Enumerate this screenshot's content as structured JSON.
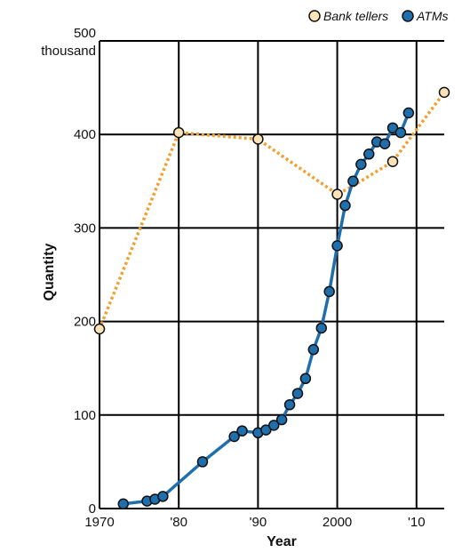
{
  "chart_data": {
    "type": "line",
    "xlabel": "Year",
    "ylabel": "Quantity",
    "xlim": [
      1970,
      2013.5
    ],
    "ylim": [
      0,
      500
    ],
    "x_ticks": [
      {
        "value": 1970,
        "label": "1970"
      },
      {
        "value": 1980,
        "label": "'80"
      },
      {
        "value": 1990,
        "label": "'90"
      },
      {
        "value": 2000,
        "label": "2000"
      },
      {
        "value": 2010,
        "label": "'10"
      }
    ],
    "y_ticks": [
      {
        "value": 0,
        "label": "0"
      },
      {
        "value": 100,
        "label": "100"
      },
      {
        "value": 200,
        "label": "200"
      },
      {
        "value": 300,
        "label": "300"
      },
      {
        "value": 400,
        "label": "400"
      },
      {
        "value": 500,
        "label": "500"
      }
    ],
    "y_top_unit": "thousand",
    "grid": true,
    "legend_position": "top-right",
    "series": [
      {
        "name": "Bank tellers",
        "style": "dotted",
        "line_color": "#f0a030",
        "marker_fill": "#fde4b8",
        "points": [
          {
            "x": 1970,
            "y": 192
          },
          {
            "x": 1980,
            "y": 402
          },
          {
            "x": 1990,
            "y": 395
          },
          {
            "x": 2000,
            "y": 336
          },
          {
            "x": 2002,
            "y": 345
          },
          {
            "x": 2007,
            "y": 371
          },
          {
            "x": 2013.5,
            "y": 445
          }
        ],
        "markers_at": [
          1970,
          1980,
          1990,
          2000,
          2007,
          2013.5
        ]
      },
      {
        "name": "ATMs",
        "style": "solid",
        "line_color": "#1f6fad",
        "marker_fill": "#1f6fad",
        "points": [
          {
            "x": 1973,
            "y": 5
          },
          {
            "x": 1976,
            "y": 8
          },
          {
            "x": 1977,
            "y": 10
          },
          {
            "x": 1978,
            "y": 13
          },
          {
            "x": 1983,
            "y": 50
          },
          {
            "x": 1987,
            "y": 77
          },
          {
            "x": 1988,
            "y": 83
          },
          {
            "x": 1990,
            "y": 81
          },
          {
            "x": 1991,
            "y": 84
          },
          {
            "x": 1992,
            "y": 89
          },
          {
            "x": 1993,
            "y": 95
          },
          {
            "x": 1994,
            "y": 111
          },
          {
            "x": 1995,
            "y": 123
          },
          {
            "x": 1996,
            "y": 139
          },
          {
            "x": 1997,
            "y": 170
          },
          {
            "x": 1998,
            "y": 193
          },
          {
            "x": 1999,
            "y": 232
          },
          {
            "x": 2000,
            "y": 281
          },
          {
            "x": 2001,
            "y": 324
          },
          {
            "x": 2002,
            "y": 350
          },
          {
            "x": 2003,
            "y": 368
          },
          {
            "x": 2004,
            "y": 379
          },
          {
            "x": 2005,
            "y": 392
          },
          {
            "x": 2006,
            "y": 390
          },
          {
            "x": 2007,
            "y": 407
          },
          {
            "x": 2008,
            "y": 402
          },
          {
            "x": 2009,
            "y": 423
          }
        ]
      }
    ]
  }
}
